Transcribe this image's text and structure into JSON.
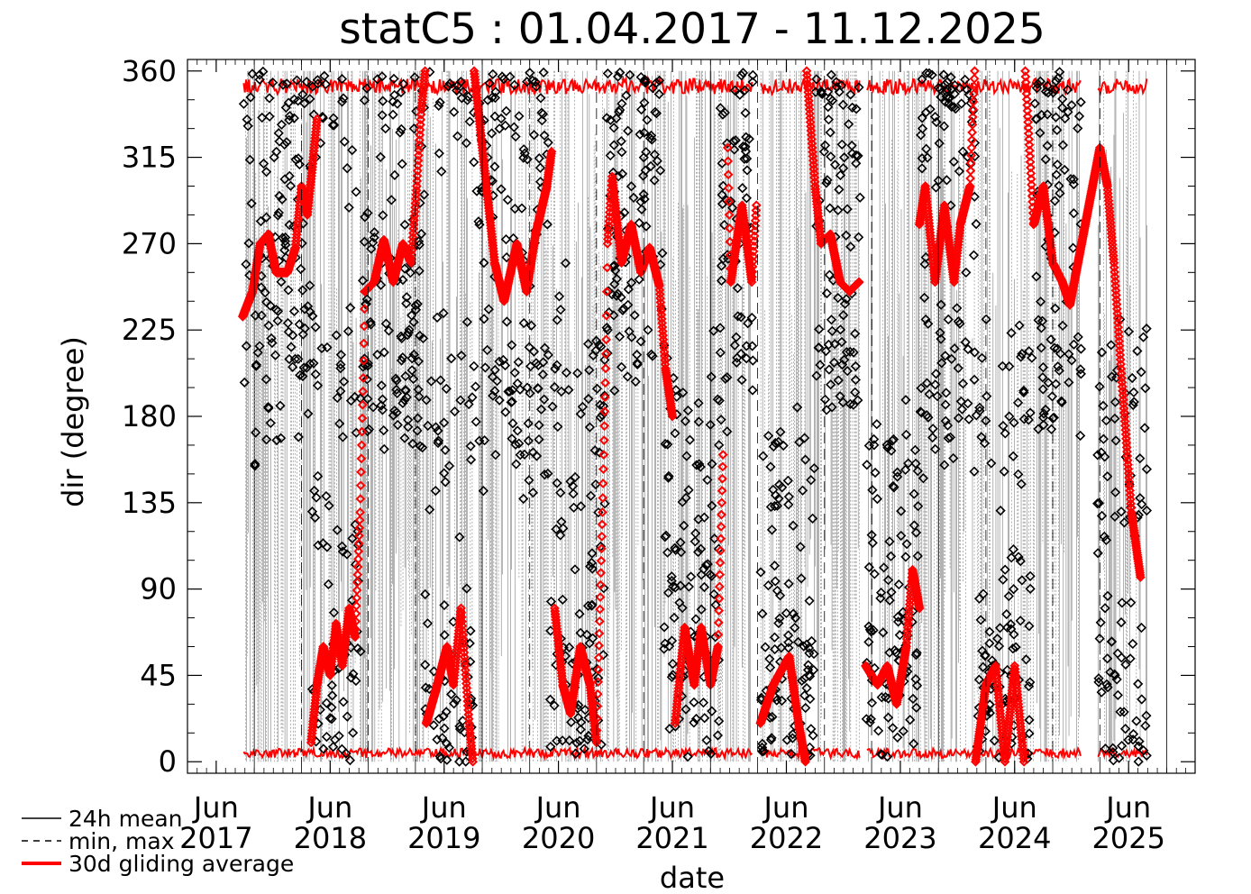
{
  "chart_data": {
    "type": "scatter",
    "title": "statC5 : 01.04.2017 - 11.12.2025",
    "xlabel": "date",
    "ylabel": "dir (degree)",
    "xlim": [
      "2017-03-01",
      "2025-12-31"
    ],
    "ylim": [
      -6,
      366
    ],
    "yticks": [
      0,
      45,
      90,
      135,
      180,
      225,
      270,
      315,
      360
    ],
    "xticks": [
      {
        "date": "2017-06-01",
        "month": "Jun",
        "year": "2017"
      },
      {
        "date": "2018-06-01",
        "month": "Jun",
        "year": "2018"
      },
      {
        "date": "2019-06-01",
        "month": "Jun",
        "year": "2019"
      },
      {
        "date": "2020-06-01",
        "month": "Jun",
        "year": "2020"
      },
      {
        "date": "2021-06-01",
        "month": "Jun",
        "year": "2021"
      },
      {
        "date": "2022-06-01",
        "month": "Jun",
        "year": "2022"
      },
      {
        "date": "2023-06-01",
        "month": "Jun",
        "year": "2023"
      },
      {
        "date": "2024-06-01",
        "month": "Jun",
        "year": "2024"
      },
      {
        "date": "2025-06-01",
        "month": "Jun",
        "year": "2025"
      }
    ],
    "legend": [
      {
        "label": "24h mean",
        "style": "solid",
        "color": "#000000"
      },
      {
        "label": "min, max",
        "style": "dashed",
        "color": "#000000"
      },
      {
        "label": "30d gliding average",
        "style": "solid",
        "color": "#ff0000"
      }
    ],
    "legend_position": "bottom-left",
    "gaps": [
      {
        "from": "2017-03-01",
        "to": "2017-08-25"
      },
      {
        "from": "2022-02-15",
        "to": "2022-03-10"
      },
      {
        "from": "2023-01-25",
        "to": "2023-02-10"
      },
      {
        "from": "2025-01-01",
        "to": "2025-02-20"
      },
      {
        "from": "2025-08-01",
        "to": "2025-12-31"
      }
    ],
    "series": [
      {
        "name": "30d gliding average",
        "color": "#ff0000",
        "points": [
          [
            "2017-08-25",
            232
          ],
          [
            "2017-09-25",
            245
          ],
          [
            "2017-10-20",
            270
          ],
          [
            "2017-11-15",
            275
          ],
          [
            "2017-12-10",
            255
          ],
          [
            "2018-01-15",
            255
          ],
          [
            "2018-02-10",
            268
          ],
          [
            "2018-03-01",
            300
          ],
          [
            "2018-03-20",
            285
          ],
          [
            "2018-04-05",
            310
          ],
          [
            "2018-04-20",
            335
          ],
          [
            "2018-04-01",
            10
          ],
          [
            "2018-04-20",
            40
          ],
          [
            "2018-05-10",
            60
          ],
          [
            "2018-06-01",
            45
          ],
          [
            "2018-06-20",
            72
          ],
          [
            "2018-07-10",
            50
          ],
          [
            "2018-08-01",
            80
          ],
          [
            "2018-08-20",
            65
          ],
          [
            "2018-09-05",
            130
          ],
          [
            "2018-09-15",
            200
          ],
          [
            "2018-09-20",
            245
          ],
          [
            "2018-10-20",
            250
          ],
          [
            "2018-11-20",
            272
          ],
          [
            "2018-12-20",
            250
          ],
          [
            "2019-01-20",
            270
          ],
          [
            "2019-02-15",
            260
          ],
          [
            "2019-03-05",
            300
          ],
          [
            "2019-03-20",
            340
          ],
          [
            "2019-04-01",
            360
          ],
          [
            "2019-04-05",
            20
          ],
          [
            "2019-05-10",
            40
          ],
          [
            "2019-06-10",
            60
          ],
          [
            "2019-07-01",
            40
          ],
          [
            "2019-07-25",
            80
          ],
          [
            "2019-08-20",
            20
          ],
          [
            "2019-09-01",
            0
          ],
          [
            "2019-09-05",
            360
          ],
          [
            "2019-10-01",
            320
          ],
          [
            "2019-11-10",
            260
          ],
          [
            "2019-12-10",
            240
          ],
          [
            "2020-01-20",
            270
          ],
          [
            "2020-02-20",
            245
          ],
          [
            "2020-03-20",
            275
          ],
          [
            "2020-04-25",
            300
          ],
          [
            "2020-05-10",
            318
          ],
          [
            "2020-05-20",
            80
          ],
          [
            "2020-06-15",
            40
          ],
          [
            "2020-07-10",
            25
          ],
          [
            "2020-08-10",
            60
          ],
          [
            "2020-09-10",
            40
          ],
          [
            "2020-10-01",
            10
          ],
          [
            "2020-10-20",
            130
          ],
          [
            "2020-11-01",
            220
          ],
          [
            "2020-11-05",
            270
          ],
          [
            "2020-11-20",
            305
          ],
          [
            "2020-12-20",
            260
          ],
          [
            "2021-01-20",
            280
          ],
          [
            "2021-02-20",
            255
          ],
          [
            "2021-03-20",
            268
          ],
          [
            "2021-04-20",
            248
          ],
          [
            "2021-05-10",
            205
          ],
          [
            "2021-06-01",
            180
          ],
          [
            "2021-06-10",
            20
          ],
          [
            "2021-07-10",
            70
          ],
          [
            "2021-08-10",
            40
          ],
          [
            "2021-09-01",
            70
          ],
          [
            "2021-10-01",
            40
          ],
          [
            "2021-10-25",
            60
          ],
          [
            "2021-11-10",
            160
          ],
          [
            "2021-11-25",
            320
          ],
          [
            "2021-12-05",
            250
          ],
          [
            "2022-01-10",
            290
          ],
          [
            "2022-02-10",
            250
          ],
          [
            "2022-02-25",
            290
          ],
          [
            "2022-03-10",
            20
          ],
          [
            "2022-04-20",
            40
          ],
          [
            "2022-06-10",
            55
          ],
          [
            "2022-07-10",
            20
          ],
          [
            "2022-08-01",
            0
          ],
          [
            "2022-08-05",
            360
          ],
          [
            "2022-09-01",
            300
          ],
          [
            "2022-09-20",
            270
          ],
          [
            "2022-10-20",
            275
          ],
          [
            "2022-11-20",
            250
          ],
          [
            "2022-12-20",
            245
          ],
          [
            "2023-01-20",
            250
          ],
          [
            "2023-02-10",
            50
          ],
          [
            "2023-03-20",
            40
          ],
          [
            "2023-04-20",
            50
          ],
          [
            "2023-05-20",
            30
          ],
          [
            "2023-06-20",
            60
          ],
          [
            "2023-07-10",
            100
          ],
          [
            "2023-08-01",
            80
          ],
          [
            "2023-08-01",
            280
          ],
          [
            "2023-08-20",
            300
          ],
          [
            "2023-09-20",
            250
          ],
          [
            "2023-10-20",
            290
          ],
          [
            "2023-11-20",
            250
          ],
          [
            "2023-12-10",
            280
          ],
          [
            "2024-01-10",
            300
          ],
          [
            "2024-01-25",
            360
          ],
          [
            "2024-01-28",
            0
          ],
          [
            "2024-03-01",
            40
          ],
          [
            "2024-04-01",
            50
          ],
          [
            "2024-05-01",
            0
          ],
          [
            "2024-06-01",
            50
          ],
          [
            "2024-07-01",
            0
          ],
          [
            "2024-07-05",
            360
          ],
          [
            "2024-08-01",
            280
          ],
          [
            "2024-09-01",
            300
          ],
          [
            "2024-10-01",
            260
          ],
          [
            "2024-11-01",
            250
          ],
          [
            "2024-11-25",
            238
          ],
          [
            "2025-03-01",
            320
          ],
          [
            "2025-03-25",
            300
          ],
          [
            "2025-04-15",
            260
          ],
          [
            "2025-05-10",
            200
          ],
          [
            "2025-06-10",
            130
          ],
          [
            "2025-07-10",
            95
          ]
        ]
      },
      {
        "name": "24h mean",
        "color": "#000000",
        "clusters": [
          {
            "from": "2017-08-25",
            "to": "2018-03-31",
            "centers": [
              230,
              350,
              200,
              280
            ]
          },
          {
            "from": "2018-04-01",
            "to": "2018-09-15",
            "centers": [
              30,
              120,
              200,
              330
            ]
          },
          {
            "from": "2018-09-16",
            "to": "2019-03-31",
            "centers": [
              220,
              260,
              350,
              190
            ]
          },
          {
            "from": "2019-04-01",
            "to": "2019-09-01",
            "centers": [
              20,
              60,
              180,
              350
            ]
          },
          {
            "from": "2019-09-02",
            "to": "2020-04-30",
            "centers": [
              210,
              300,
              350,
              180
            ]
          },
          {
            "from": "2020-05-01",
            "to": "2020-10-31",
            "centers": [
              20,
              140,
              60,
              200
            ]
          },
          {
            "from": "2020-11-01",
            "to": "2021-04-30",
            "centers": [
              220,
              320,
              350,
              270
            ]
          },
          {
            "from": "2021-05-01",
            "to": "2021-10-31",
            "centers": [
              30,
              100,
              180,
              80
            ]
          },
          {
            "from": "2021-11-01",
            "to": "2022-02-14",
            "centers": [
              220,
              300,
              350
            ]
          },
          {
            "from": "2022-03-10",
            "to": "2022-08-31",
            "centers": [
              20,
              60,
              150,
              40
            ]
          },
          {
            "from": "2022-09-01",
            "to": "2023-01-24",
            "centers": [
              220,
              300,
              350,
              190
            ]
          },
          {
            "from": "2023-02-10",
            "to": "2023-07-31",
            "centers": [
              20,
              90,
              150,
              60
            ]
          },
          {
            "from": "2023-08-01",
            "to": "2024-01-31",
            "centers": [
              220,
              320,
              350,
              190
            ]
          },
          {
            "from": "2024-02-01",
            "to": "2024-07-31",
            "centers": [
              20,
              60,
              100,
              190
            ]
          },
          {
            "from": "2024-08-01",
            "to": "2024-12-31",
            "centers": [
              220,
              200,
              350,
              290
            ]
          },
          {
            "from": "2025-02-20",
            "to": "2025-07-31",
            "centers": [
              150,
              60,
              20,
              200
            ]
          }
        ]
      }
    ]
  }
}
